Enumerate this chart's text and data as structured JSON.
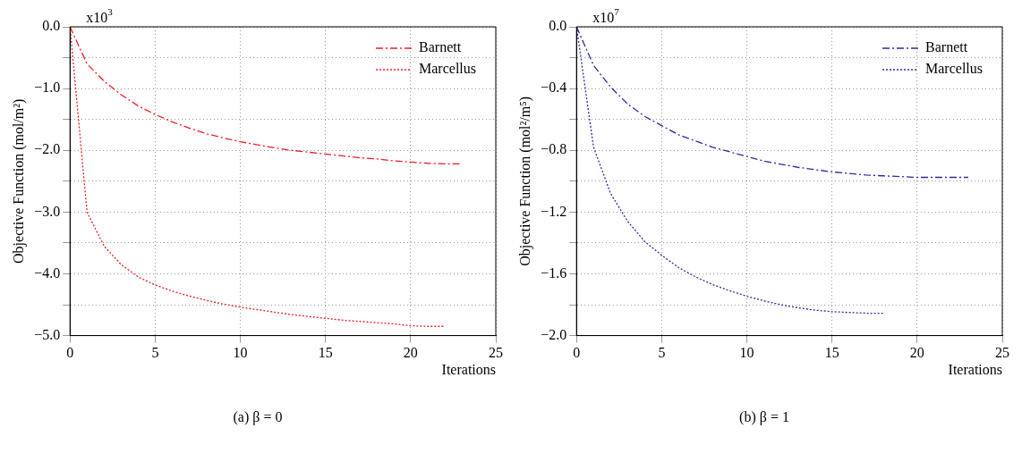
{
  "chart_data": [
    {
      "type": "line",
      "ylabel": "Objective Function (mol/m²)",
      "xlabel": "Iterations",
      "annotations": [
        "x10$^{3}$",
        "(a) β = 0"
      ],
      "xlim": [
        0,
        25
      ],
      "xticks": [
        0,
        5,
        10,
        15,
        20,
        25
      ],
      "ylim": [
        -5,
        0
      ],
      "yticks": [
        {
          "value": 0,
          "label": "0.0"
        },
        {
          "value": -0.5,
          "label": null
        },
        {
          "value": -1,
          "label": "−1.0"
        },
        {
          "value": -1.5,
          "label": null
        },
        {
          "value": -2,
          "label": "−2.0"
        },
        {
          "value": -2.5,
          "label": null
        },
        {
          "value": -3,
          "label": "−3.0"
        },
        {
          "value": -3.5,
          "label": null
        },
        {
          "value": -4,
          "label": "−4.0"
        },
        {
          "value": -4.5,
          "label": null
        },
        {
          "value": -5,
          "label": "−5.0"
        }
      ],
      "grid": true,
      "legend": "top right",
      "marker": "none",
      "series": [
        {
          "name": "Barnett",
          "color": "#ee1c25",
          "line_style": "dashed",
          "x": [
            0,
            1,
            2,
            3,
            4,
            5,
            6,
            7,
            8,
            9,
            10,
            11,
            12,
            13,
            14,
            15,
            16,
            17,
            18,
            19,
            20,
            21,
            22,
            23
          ],
          "values": [
            0,
            -0.6,
            -0.88,
            -1.1,
            -1.28,
            -1.42,
            -1.54,
            -1.64,
            -1.73,
            -1.8,
            -1.86,
            -1.91,
            -1.96,
            -2.0,
            -2.03,
            -2.06,
            -2.09,
            -2.12,
            -2.14,
            -2.17,
            -2.19,
            -2.21,
            -2.22,
            -2.22
          ]
        },
        {
          "name": "Marcellus",
          "color": "#ee1c25",
          "line_style": "dotted",
          "x": [
            0,
            1,
            2,
            3,
            4,
            5,
            6,
            7,
            8,
            9,
            10,
            11,
            12,
            13,
            14,
            15,
            16,
            17,
            18,
            19,
            20,
            21,
            22
          ],
          "values": [
            0,
            -3.0,
            -3.55,
            -3.85,
            -4.05,
            -4.18,
            -4.28,
            -4.36,
            -4.43,
            -4.49,
            -4.54,
            -4.58,
            -4.62,
            -4.66,
            -4.69,
            -4.72,
            -4.75,
            -4.77,
            -4.79,
            -4.81,
            -4.84,
            -4.85,
            -4.85
          ]
        }
      ]
    },
    {
      "type": "line",
      "ylabel": "Objective Function (mol²/m⁵)",
      "xlabel": "Iterations",
      "annotations": [
        "x10$^{7}$",
        "(b) β = 1"
      ],
      "xlim": [
        0,
        25
      ],
      "xticks": [
        0,
        5,
        10,
        15,
        20,
        25
      ],
      "ylim": [
        -2,
        0
      ],
      "yticks": [
        {
          "value": 0,
          "label": "0.0"
        },
        {
          "value": -0.2,
          "label": null
        },
        {
          "value": -0.4,
          "label": "−0.4"
        },
        {
          "value": -0.6,
          "label": null
        },
        {
          "value": -0.8,
          "label": "−0.8"
        },
        {
          "value": -1,
          "label": null
        },
        {
          "value": -1.2,
          "label": "−1.2"
        },
        {
          "value": -1.4,
          "label": null
        },
        {
          "value": -1.6,
          "label": "−1.6"
        },
        {
          "value": -1.8,
          "label": null
        },
        {
          "value": -2,
          "label": "−2.0"
        }
      ],
      "grid": true,
      "legend": "top right",
      "marker": "none",
      "series": [
        {
          "name": "Barnett",
          "color": "#2b2ba0",
          "line_style": "dashed",
          "x": [
            0,
            1,
            2,
            3,
            4,
            5,
            6,
            7,
            8,
            9,
            10,
            11,
            12,
            13,
            14,
            15,
            16,
            17,
            18,
            19,
            20,
            21,
            22,
            23
          ],
          "values": [
            0,
            -0.25,
            -0.39,
            -0.5,
            -0.58,
            -0.64,
            -0.7,
            -0.74,
            -0.78,
            -0.81,
            -0.84,
            -0.87,
            -0.89,
            -0.91,
            -0.925,
            -0.94,
            -0.95,
            -0.96,
            -0.965,
            -0.97,
            -0.975,
            -0.975,
            -0.975,
            -0.975
          ]
        },
        {
          "name": "Marcellus",
          "color": "#2b2ba0",
          "line_style": "dotted",
          "x": [
            0,
            1,
            2,
            3,
            4,
            5,
            6,
            7,
            8,
            9,
            10,
            11,
            12,
            13,
            14,
            15,
            16,
            17,
            18
          ],
          "values": [
            0,
            -0.78,
            -1.08,
            -1.26,
            -1.39,
            -1.48,
            -1.56,
            -1.62,
            -1.67,
            -1.71,
            -1.745,
            -1.775,
            -1.8,
            -1.82,
            -1.835,
            -1.845,
            -1.85,
            -1.855,
            -1.855
          ]
        }
      ]
    }
  ]
}
